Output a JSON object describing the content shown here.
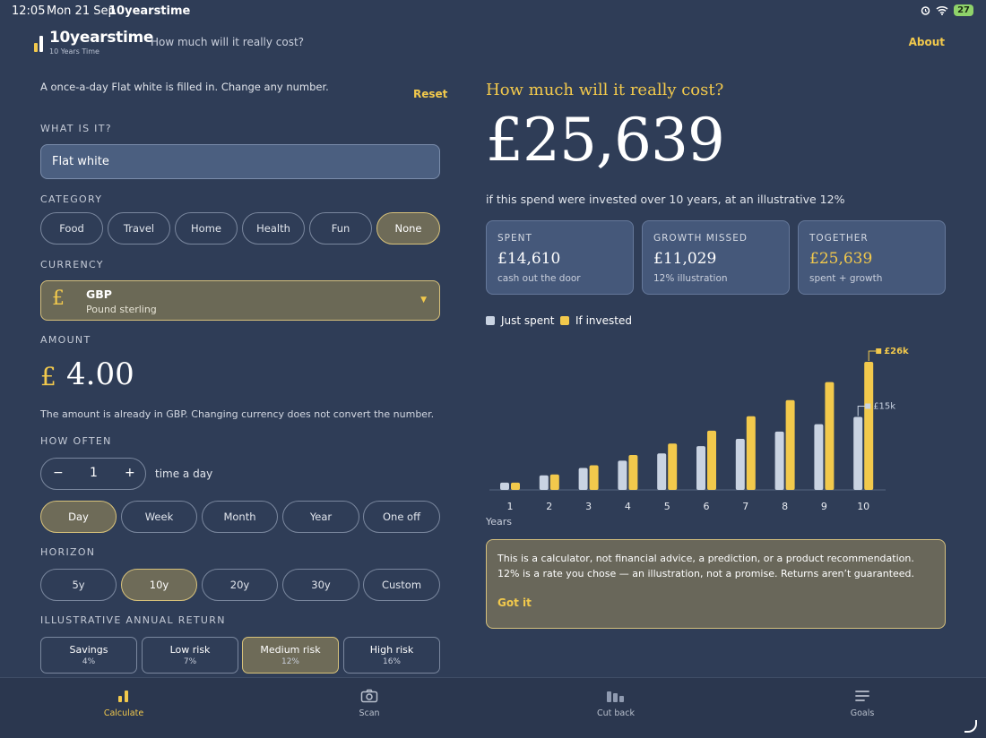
{
  "status_bar": {
    "time": "12:05",
    "date": "Mon 21 Sep",
    "app": "10yearstime",
    "battery": "27"
  },
  "header": {
    "brand": "10yearstime",
    "brand_sub": "10 Years Time",
    "question": "How much will it really cost?",
    "about": "About"
  },
  "calculator": {
    "intro": "A once-a-day Flat white is filled in. Change any number.",
    "reset": "Reset",
    "what_label": "WHAT IS IT?",
    "item_value": "Flat white",
    "category_label": "CATEGORY",
    "categories": [
      "Food",
      "Travel",
      "Home",
      "Health",
      "Fun",
      "None"
    ],
    "category_selected": "None",
    "currency_label": "CURRENCY",
    "currency": {
      "symbol": "£",
      "code": "GBP",
      "name": "Pound sterling"
    },
    "amount_label": "AMOUNT",
    "amount_symbol": "£",
    "amount_value": "4.00",
    "amount_note": "The amount is already in GBP. Changing currency does not convert the number.",
    "how_often_label": "HOW OFTEN",
    "stepper": {
      "minus": "−",
      "value": "1",
      "plus": "+",
      "unit": "time a day"
    },
    "periods": [
      "Day",
      "Week",
      "Month",
      "Year",
      "One off"
    ],
    "period_selected": "Day",
    "horizon_label": "HORIZON",
    "horizons": [
      "5y",
      "10y",
      "20y",
      "30y",
      "Custom"
    ],
    "horizon_selected": "10y",
    "return_label": "ILLUSTRATIVE ANNUAL RETURN",
    "returns": [
      {
        "name": "Savings",
        "rate": "4%"
      },
      {
        "name": "Low risk",
        "rate": "7%"
      },
      {
        "name": "Medium risk",
        "rate": "12%"
      },
      {
        "name": "High risk",
        "rate": "16%"
      }
    ],
    "return_selected": "Medium risk"
  },
  "result": {
    "title": "How much will it really cost?",
    "total": "£25,639",
    "subtitle": "if this spend were invested over 10 years, at an illustrative 12%",
    "stats": [
      {
        "label": "SPENT",
        "value": "£14,610",
        "desc": "cash out the door"
      },
      {
        "label": "GROWTH MISSED",
        "value": "£11,029",
        "desc": "12% illustration"
      },
      {
        "label": "TOGETHER",
        "value": "£25,639",
        "desc": "spent + growth"
      }
    ],
    "legend": [
      "Just spent",
      "If invested"
    ]
  },
  "chart_data": {
    "type": "bar",
    "categories": [
      "1",
      "2",
      "3",
      "4",
      "5",
      "6",
      "7",
      "8",
      "9",
      "10"
    ],
    "series": [
      {
        "name": "Just spent",
        "values": [
          1461,
          2922,
          4383,
          5844,
          7305,
          8766,
          10227,
          11688,
          13149,
          14610
        ]
      },
      {
        "name": "If invested",
        "values": [
          1461,
          3097,
          4930,
          6983,
          9282,
          11857,
          14741,
          17971,
          21588,
          25639
        ]
      }
    ],
    "xlabel": "Years",
    "ylim": [
      0,
      26000
    ],
    "annotations": [
      {
        "label": "£26k",
        "value": 25639
      },
      {
        "label": "£15k",
        "value": 14610
      }
    ],
    "colors": {
      "Just spent": "#c9d3e2",
      "If invested": "#f2c94c"
    }
  },
  "disclaimer": {
    "text": "This is a calculator, not financial advice, a prediction, or a product recommendation. 12% is a rate you chose — an illustration, not a promise. Returns aren’t guaranteed.",
    "action": "Got it"
  },
  "tabs": [
    {
      "label": "Calculate",
      "icon": "bar-chart-icon",
      "active": true
    },
    {
      "label": "Scan",
      "icon": "camera-icon",
      "active": false
    },
    {
      "label": "Cut back",
      "icon": "bars-icon",
      "active": false
    },
    {
      "label": "Goals",
      "icon": "list-icon",
      "active": false
    }
  ],
  "colors": {
    "accent": "#f2c94c",
    "background": "#2f3d57",
    "card": "#45587a",
    "selected": "#6e6b58"
  }
}
